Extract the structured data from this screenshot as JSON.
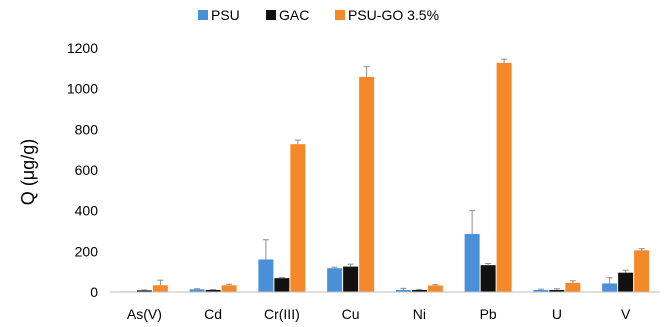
{
  "chart_data": {
    "type": "bar",
    "title": "",
    "xlabel": "",
    "ylabel": "Q (μg/g)",
    "ylim": [
      0,
      1200
    ],
    "yticks": [
      0,
      200,
      400,
      600,
      800,
      1000,
      1200
    ],
    "grid": false,
    "legend_position": "top",
    "categories": [
      "As(V)",
      "Cd",
      "Cr(III)",
      "Cu",
      "Ni",
      "Pb",
      "U",
      "V"
    ],
    "series": [
      {
        "name": "PSU",
        "color": "#4A90D9",
        "values": [
          3,
          13,
          160,
          117,
          10,
          285,
          10,
          42
        ],
        "errors": [
          0,
          3,
          97,
          5,
          8,
          115,
          4,
          28
        ]
      },
      {
        "name": "GAC",
        "color": "#111111",
        "values": [
          8,
          10,
          68,
          125,
          10,
          132,
          10,
          95
        ],
        "errors": [
          2,
          2,
          3,
          12,
          3,
          8,
          6,
          12
        ]
      },
      {
        "name": "PSU-GO 3.5%",
        "color": "#F5892A",
        "values": [
          33,
          33,
          727,
          1058,
          32,
          1127,
          45,
          205
        ],
        "errors": [
          25,
          5,
          20,
          50,
          4,
          18,
          10,
          8
        ]
      }
    ]
  }
}
